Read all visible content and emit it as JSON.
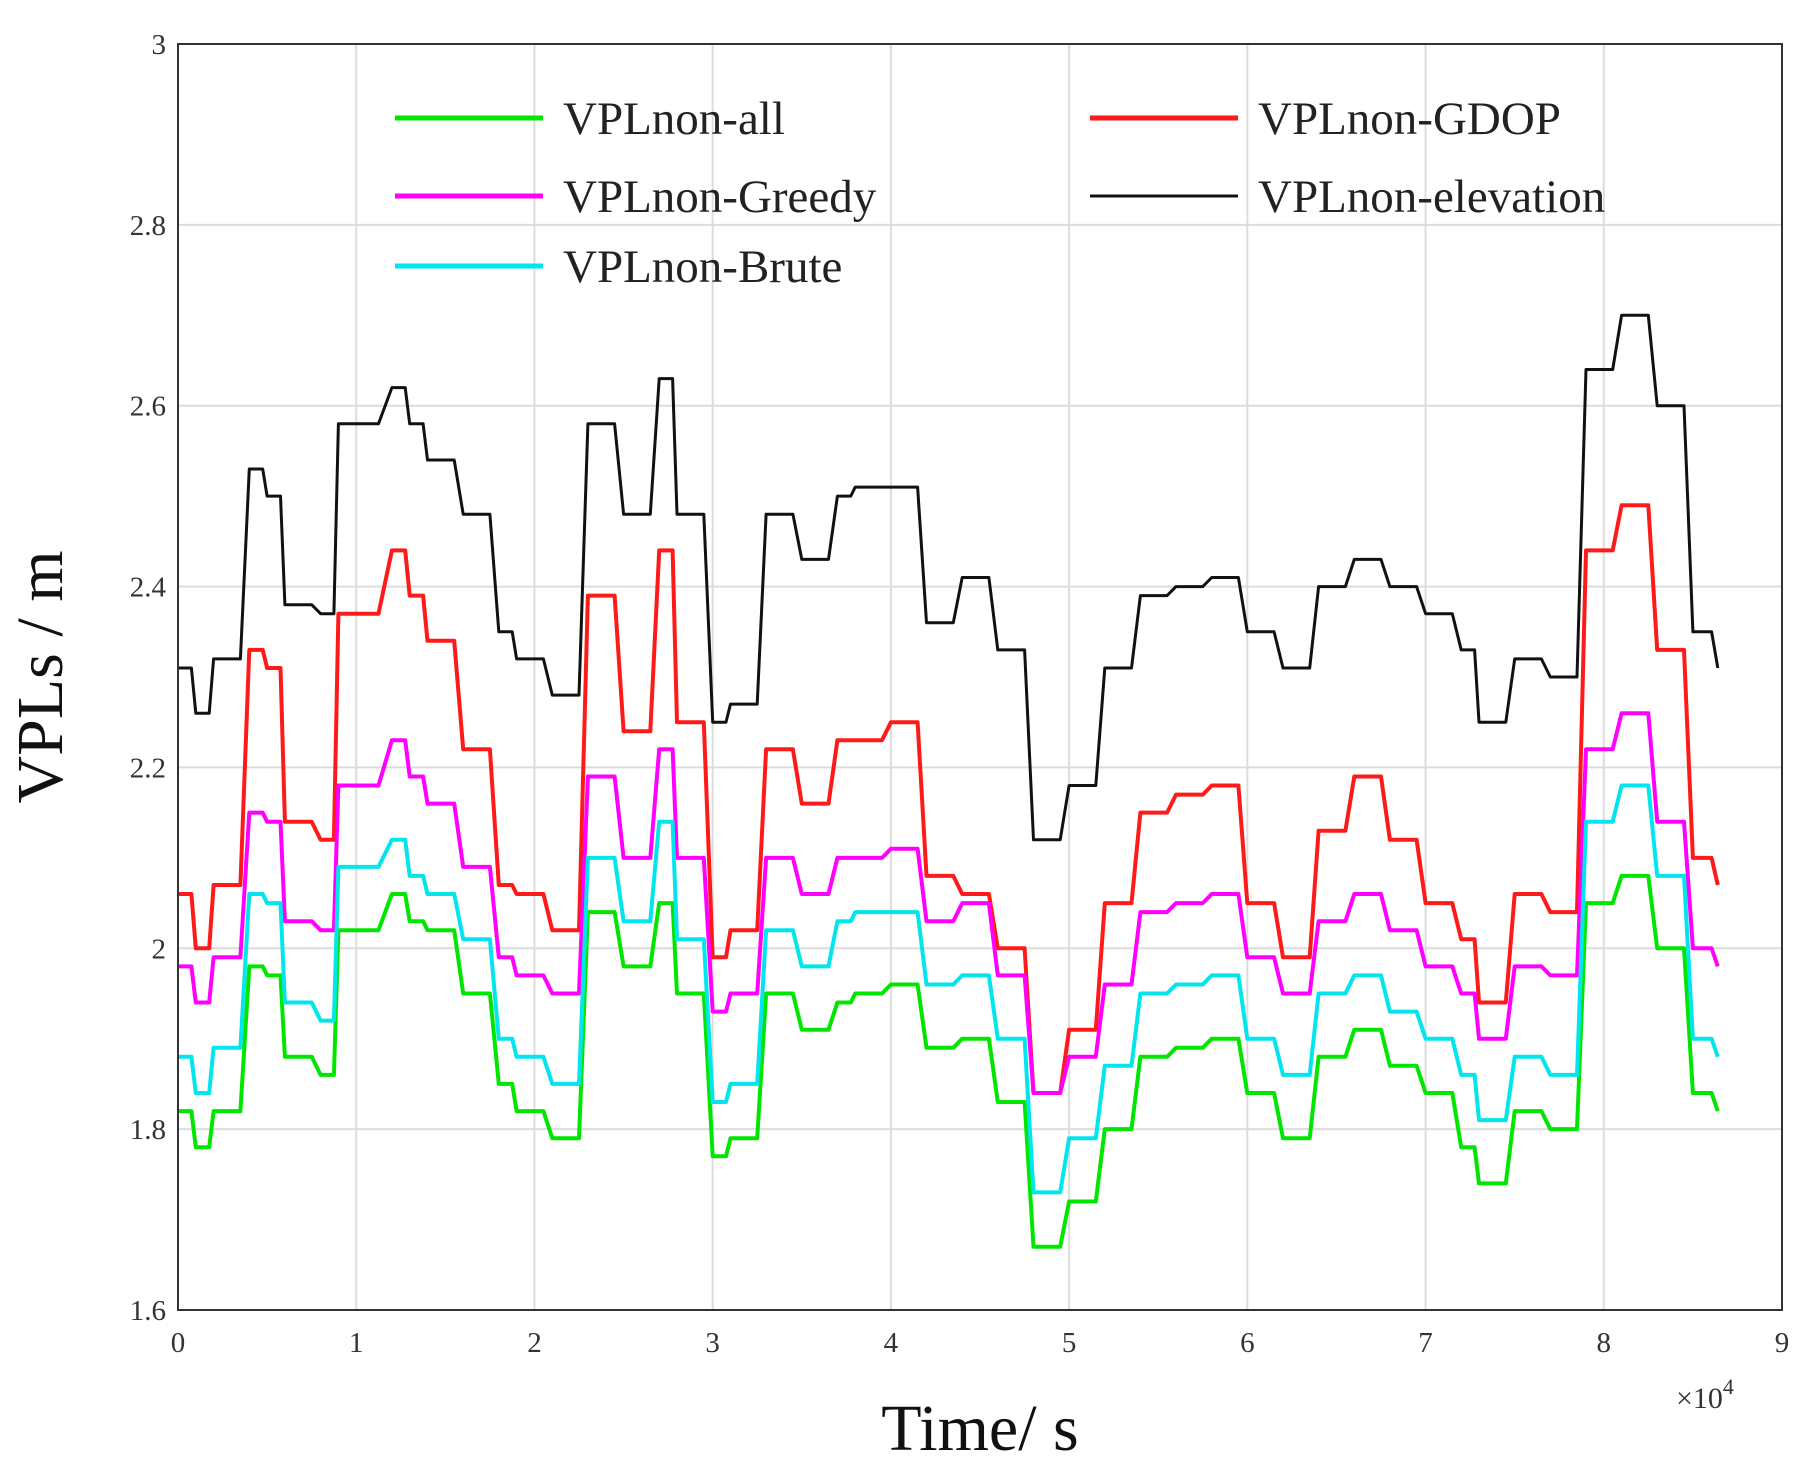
{
  "chart_data": {
    "type": "line",
    "xlabel": "Time/ s",
    "ylabel": "VPLs / m",
    "x_exponent_label": "×10",
    "x_exponent_power": "4",
    "xlim": [
      0,
      90000
    ],
    "ylim": [
      1.6,
      3.0
    ],
    "x_ticks": [
      "0",
      "1",
      "2",
      "3",
      "4",
      "5",
      "6",
      "7",
      "8",
      "9"
    ],
    "y_ticks": [
      "1.6",
      "1.8",
      "2",
      "2.2",
      "2.4",
      "2.6",
      "2.8",
      "3"
    ],
    "grid": true,
    "legend_position": "top",
    "x": [
      0,
      1000,
      2000,
      4000,
      5000,
      6000,
      8000,
      9000,
      12000,
      13000,
      14000,
      16000,
      18000,
      19000,
      21000,
      23000,
      25000,
      27000,
      28000,
      30000,
      31000,
      33000,
      35000,
      37000,
      38000,
      40000,
      42000,
      44000,
      46000,
      48000,
      50000,
      52000,
      54000,
      56000,
      58000,
      60000,
      62000,
      64000,
      66000,
      68000,
      70000,
      72000,
      73000,
      75000,
      77000,
      79000,
      81000,
      83000,
      85000,
      86400
    ],
    "series": [
      {
        "name": "VPLnon-all",
        "color": "#00e600",
        "values": [
          1.82,
          1.78,
          1.82,
          1.98,
          1.97,
          1.88,
          1.86,
          2.02,
          2.06,
          2.03,
          2.02,
          1.95,
          1.85,
          1.82,
          1.79,
          2.04,
          1.98,
          2.05,
          1.95,
          1.77,
          1.79,
          1.95,
          1.91,
          1.94,
          1.95,
          1.96,
          1.89,
          1.9,
          1.83,
          1.67,
          1.72,
          1.8,
          1.88,
          1.89,
          1.9,
          1.84,
          1.79,
          1.88,
          1.91,
          1.87,
          1.84,
          1.78,
          1.74,
          1.82,
          1.8,
          2.05,
          2.08,
          2.0,
          1.84,
          1.82
        ]
      },
      {
        "name": "VPLnon-GDOP",
        "color": "#ff1a1a",
        "values": [
          2.06,
          2.0,
          2.07,
          2.33,
          2.31,
          2.14,
          2.12,
          2.37,
          2.44,
          2.39,
          2.34,
          2.22,
          2.07,
          2.06,
          2.02,
          2.39,
          2.24,
          2.44,
          2.25,
          1.99,
          2.02,
          2.22,
          2.16,
          2.23,
          2.23,
          2.25,
          2.08,
          2.06,
          2.0,
          1.84,
          1.91,
          2.05,
          2.15,
          2.17,
          2.18,
          2.05,
          1.99,
          2.13,
          2.19,
          2.12,
          2.05,
          2.01,
          1.94,
          2.06,
          2.04,
          2.44,
          2.49,
          2.33,
          2.1,
          2.07
        ]
      },
      {
        "name": "VPLnon-Greedy",
        "color": "#ff00ff",
        "values": [
          1.98,
          1.94,
          1.99,
          2.15,
          2.14,
          2.03,
          2.02,
          2.18,
          2.23,
          2.19,
          2.16,
          2.09,
          1.99,
          1.97,
          1.95,
          2.19,
          2.1,
          2.22,
          2.1,
          1.93,
          1.95,
          2.1,
          2.06,
          2.1,
          2.1,
          2.11,
          2.03,
          2.05,
          1.97,
          1.84,
          1.88,
          1.96,
          2.04,
          2.05,
          2.06,
          1.99,
          1.95,
          2.03,
          2.06,
          2.02,
          1.98,
          1.95,
          1.9,
          1.98,
          1.97,
          2.22,
          2.26,
          2.14,
          2.0,
          1.98
        ]
      },
      {
        "name": "VPLnon-elevation",
        "color": "#111111",
        "values": [
          2.31,
          2.26,
          2.32,
          2.53,
          2.5,
          2.38,
          2.37,
          2.58,
          2.62,
          2.58,
          2.54,
          2.48,
          2.35,
          2.32,
          2.28,
          2.58,
          2.48,
          2.63,
          2.48,
          2.25,
          2.27,
          2.48,
          2.43,
          2.5,
          2.51,
          2.51,
          2.36,
          2.41,
          2.33,
          2.12,
          2.18,
          2.31,
          2.39,
          2.4,
          2.41,
          2.35,
          2.31,
          2.4,
          2.43,
          2.4,
          2.37,
          2.33,
          2.25,
          2.32,
          2.3,
          2.64,
          2.7,
          2.6,
          2.35,
          2.31
        ]
      },
      {
        "name": "VPLnon-Brute",
        "color": "#00e5ee",
        "values": [
          1.88,
          1.84,
          1.89,
          2.06,
          2.05,
          1.94,
          1.92,
          2.09,
          2.12,
          2.08,
          2.06,
          2.01,
          1.9,
          1.88,
          1.85,
          2.1,
          2.03,
          2.14,
          2.01,
          1.83,
          1.85,
          2.02,
          1.98,
          2.03,
          2.04,
          2.04,
          1.96,
          1.97,
          1.9,
          1.73,
          1.79,
          1.87,
          1.95,
          1.96,
          1.97,
          1.9,
          1.86,
          1.95,
          1.97,
          1.93,
          1.9,
          1.86,
          1.81,
          1.88,
          1.86,
          2.14,
          2.18,
          2.08,
          1.9,
          1.88
        ]
      }
    ]
  }
}
